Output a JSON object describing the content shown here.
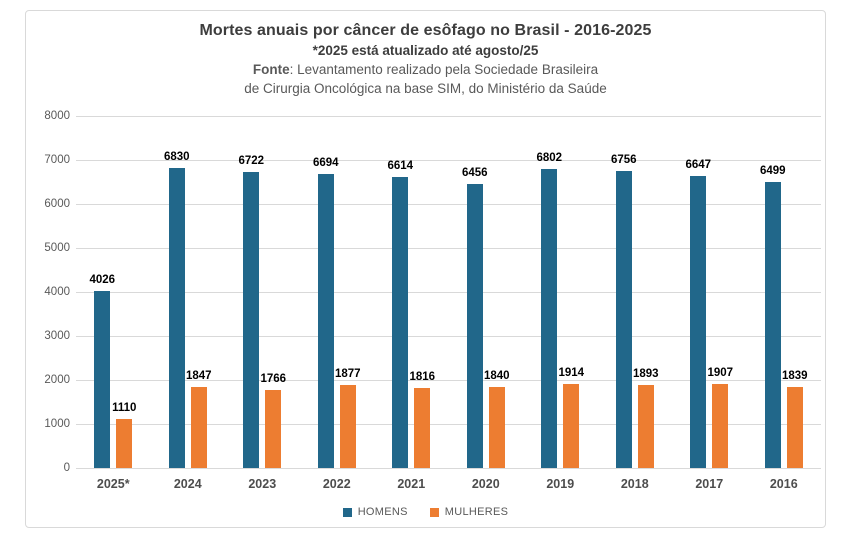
{
  "header": {
    "title": "Mortes anuais por câncer de esôfago no Brasil - 2016-2025",
    "subtitle": "*2025 está atualizado até agosto/25",
    "source_label": "Fonte",
    "source_text": ": Levantamento realizado pela Sociedade Brasileira",
    "source_line2": "de Cirurgia Oncológica na base SIM, do Ministério da Saúde"
  },
  "colors": {
    "homens": "#21678a",
    "mulheres": "#ed7d31",
    "gridline": "#d9d9d9",
    "title_text": "#3d3d3d",
    "axis_text": "#595959",
    "value_label": "#000000"
  },
  "chart_data": {
    "type": "bar",
    "title": "Mortes anuais por câncer de esôfago no Brasil - 2016-2025",
    "subtitle": "*2025 está atualizado até agosto/25",
    "source": "Fonte: Levantamento realizado pela Sociedade Brasileira de Cirurgia Oncológica na base SIM, do Ministério da Saúde",
    "categories": [
      "2025*",
      "2024",
      "2023",
      "2022",
      "2021",
      "2020",
      "2019",
      "2018",
      "2017",
      "2016"
    ],
    "series": [
      {
        "name": "HOMENS",
        "color": "#21678a",
        "values": [
          4026,
          6830,
          6722,
          6694,
          6614,
          6456,
          6802,
          6756,
          6647,
          6499
        ]
      },
      {
        "name": "MULHERES",
        "color": "#ed7d31",
        "values": [
          1110,
          1847,
          1766,
          1877,
          1816,
          1840,
          1914,
          1893,
          1907,
          1839
        ]
      }
    ],
    "xlabel": "",
    "ylabel": "",
    "ylim": [
      0,
      8000
    ],
    "ytick_step": 1000,
    "grid": true,
    "value_labels": true,
    "legend_position": "bottom"
  }
}
